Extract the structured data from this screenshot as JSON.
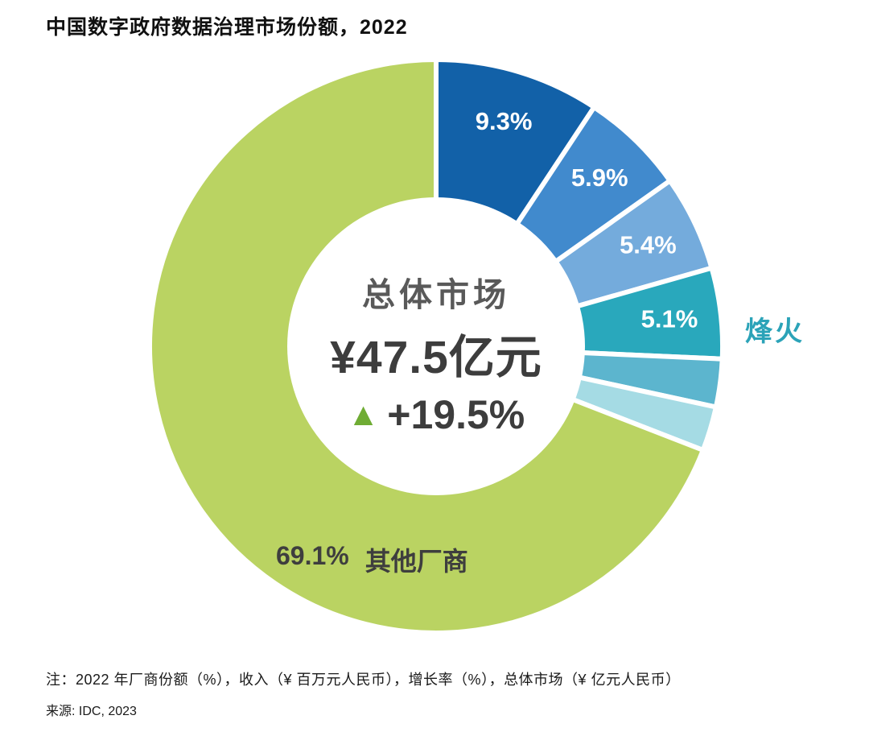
{
  "page": {
    "title": "中国数字政府数据治理市场份额，2022",
    "note": "注：2022 年厂商份额（%），收入（¥ 百万元人民币），增长率（%），总体市场（¥ 亿元人民币）",
    "source": "来源: IDC, 2023"
  },
  "chart_data": {
    "type": "pie",
    "subtype": "donut",
    "title": "中国数字政府数据治理市场份额，2022",
    "year": "2022",
    "start_angle_deg": 0,
    "direction": "clockwise",
    "donut_hole_ratio": 0.52,
    "center": {
      "line1": "总体市场",
      "value": "¥47.5亿元",
      "growth": "+19.5%",
      "growth_direction": "up",
      "triangle_color": "#6fac34"
    },
    "segments": [
      {
        "label": "9.3%",
        "value": 9.3,
        "vendor": "",
        "color": "#1261a8"
      },
      {
        "label": "5.9%",
        "value": 5.9,
        "vendor": "",
        "color": "#418acd"
      },
      {
        "label": "5.4%",
        "value": 5.4,
        "vendor": "",
        "color": "#74abdc"
      },
      {
        "label": "5.1%",
        "value": 5.1,
        "vendor": "烽火",
        "color": "#29a8bc"
      },
      {
        "label": "",
        "value": 2.7,
        "vendor": "",
        "color": "#5cb5ce"
      },
      {
        "label": "",
        "value": 2.5,
        "vendor": "",
        "color": "#a5dbe4"
      },
      {
        "label": "69.1%",
        "value": 69.1,
        "vendor": "其他厂商",
        "color": "#bad362"
      }
    ],
    "inner_label_color": "#ffffff",
    "vendor_label_color": "#2ba3b8",
    "total_market_label": "总体市场 ¥47.5亿元，增长 +19.5%"
  }
}
